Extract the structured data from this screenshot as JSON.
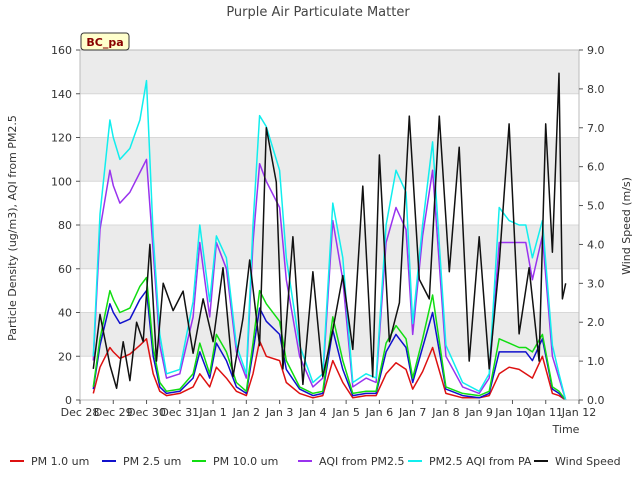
{
  "chart_data": {
    "type": "line",
    "title": "Purple Air Particulate Matter",
    "station_label": "BC_pa",
    "xlabel": "Time",
    "ylabel_left": "Particle Density (ug/m3), AQI from PM2.5",
    "ylabel_right": "Wind Speed (m/s)",
    "x_range_days": [
      0,
      15
    ],
    "x_ticks": [
      {
        "day": 0,
        "label": "Dec 28"
      },
      {
        "day": 1,
        "label": "Dec 29"
      },
      {
        "day": 2,
        "label": "Dec 30"
      },
      {
        "day": 3,
        "label": "Dec 31"
      },
      {
        "day": 4,
        "label": "Jan 1"
      },
      {
        "day": 5,
        "label": "Jan 2"
      },
      {
        "day": 6,
        "label": "Jan 3"
      },
      {
        "day": 7,
        "label": "Jan 4"
      },
      {
        "day": 8,
        "label": "Jan 5"
      },
      {
        "day": 9,
        "label": "Jan 6"
      },
      {
        "day": 10,
        "label": "Jan 7"
      },
      {
        "day": 11,
        "label": "Jan 8"
      },
      {
        "day": 12,
        "label": "Jan 9"
      },
      {
        "day": 13,
        "label": "Jan 10"
      },
      {
        "day": 14,
        "label": "Jan 11"
      },
      {
        "day": 15,
        "label": "Jan 12"
      }
    ],
    "ylim_left": [
      0,
      160
    ],
    "yticks_left": [
      0,
      20,
      40,
      60,
      80,
      100,
      120,
      140,
      160
    ],
    "ylim_right": [
      0,
      9
    ],
    "yticks_right": [
      "0.0",
      "1.0",
      "2.0",
      "3.0",
      "4.0",
      "5.0",
      "6.0",
      "7.0",
      "8.0",
      "9.0"
    ],
    "band_color": "#ebebeb",
    "grid_color": "#d8d8d8",
    "series": [
      {
        "name": "PM 1.0 um",
        "color": "#dd1111",
        "axis": "left",
        "x": [
          0.4,
          0.6,
          0.9,
          1.0,
          1.2,
          1.5,
          1.8,
          2.0,
          2.2,
          2.4,
          2.6,
          3.0,
          3.4,
          3.6,
          3.9,
          4.1,
          4.4,
          4.7,
          5.0,
          5.2,
          5.4,
          5.6,
          6.0,
          6.2,
          6.6,
          7.0,
          7.3,
          7.6,
          7.9,
          8.2,
          8.6,
          8.9,
          9.2,
          9.5,
          9.8,
          10.0,
          10.3,
          10.6,
          11.0,
          11.5,
          12.0,
          12.3,
          12.6,
          12.9,
          13.2,
          13.4,
          13.6,
          13.9,
          14.2,
          14.4,
          14.6
        ],
        "y": [
          3,
          15,
          24,
          22,
          19,
          21,
          25,
          28,
          12,
          4,
          2,
          3,
          6,
          12,
          6,
          15,
          10,
          4,
          2,
          12,
          27,
          20,
          18,
          8,
          3,
          1,
          2,
          18,
          8,
          1,
          2,
          2,
          12,
          17,
          14,
          5,
          13,
          24,
          3,
          1,
          1,
          2,
          12,
          15,
          14,
          12,
          10,
          20,
          3,
          2,
          0
        ]
      },
      {
        "name": "PM 2.5 um",
        "color": "#1111cc",
        "axis": "left",
        "x": [
          0.4,
          0.6,
          0.9,
          1.0,
          1.2,
          1.5,
          1.8,
          2.0,
          2.2,
          2.4,
          2.6,
          3.0,
          3.4,
          3.6,
          3.9,
          4.1,
          4.4,
          4.7,
          5.0,
          5.2,
          5.4,
          5.6,
          6.0,
          6.2,
          6.6,
          7.0,
          7.3,
          7.6,
          7.9,
          8.2,
          8.6,
          8.9,
          9.2,
          9.5,
          9.8,
          10.0,
          10.3,
          10.6,
          11.0,
          11.5,
          12.0,
          12.3,
          12.6,
          12.9,
          13.2,
          13.4,
          13.6,
          13.9,
          14.2,
          14.4,
          14.6
        ],
        "y": [
          5,
          25,
          44,
          40,
          35,
          37,
          46,
          50,
          20,
          6,
          3,
          4,
          10,
          22,
          10,
          26,
          18,
          6,
          3,
          22,
          42,
          36,
          30,
          14,
          5,
          2,
          3,
          32,
          14,
          2,
          3,
          3,
          22,
          30,
          24,
          8,
          24,
          40,
          5,
          2,
          1,
          3,
          22,
          22,
          22,
          22,
          18,
          28,
          5,
          3,
          0
        ]
      },
      {
        "name": "PM 10.0 um",
        "color": "#11dd11",
        "axis": "left",
        "x": [
          0.4,
          0.6,
          0.9,
          1.0,
          1.2,
          1.5,
          1.8,
          2.0,
          2.2,
          2.4,
          2.6,
          3.0,
          3.4,
          3.6,
          3.9,
          4.1,
          4.4,
          4.7,
          5.0,
          5.2,
          5.4,
          5.6,
          6.0,
          6.2,
          6.6,
          7.0,
          7.3,
          7.6,
          7.9,
          8.2,
          8.6,
          8.9,
          9.2,
          9.5,
          9.8,
          10.0,
          10.3,
          10.6,
          11.0,
          11.5,
          12.0,
          12.3,
          12.6,
          12.9,
          13.2,
          13.4,
          13.6,
          13.9,
          14.2,
          14.4,
          14.6
        ],
        "y": [
          6,
          28,
          50,
          46,
          40,
          42,
          52,
          56,
          24,
          8,
          4,
          5,
          12,
          26,
          12,
          30,
          22,
          8,
          4,
          26,
          50,
          44,
          36,
          18,
          6,
          3,
          4,
          38,
          18,
          3,
          4,
          4,
          26,
          34,
          28,
          10,
          28,
          48,
          6,
          3,
          2,
          4,
          28,
          26,
          24,
          24,
          22,
          30,
          6,
          4,
          0
        ]
      },
      {
        "name": "AQI from PM2.5",
        "color": "#9933ee",
        "axis": "left",
        "x": [
          0.4,
          0.6,
          0.9,
          1.0,
          1.2,
          1.5,
          1.8,
          2.0,
          2.2,
          2.4,
          2.6,
          3.0,
          3.4,
          3.6,
          3.9,
          4.1,
          4.4,
          4.7,
          5.0,
          5.2,
          5.4,
          5.6,
          6.0,
          6.2,
          6.6,
          7.0,
          7.3,
          7.6,
          7.9,
          8.2,
          8.6,
          8.9,
          9.2,
          9.5,
          9.8,
          10.0,
          10.3,
          10.6,
          11.0,
          11.5,
          12.0,
          12.3,
          12.6,
          12.9,
          13.2,
          13.4,
          13.6,
          13.9,
          14.2,
          14.4,
          14.6
        ],
        "y": [
          18,
          78,
          105,
          98,
          90,
          95,
          104,
          110,
          68,
          25,
          10,
          12,
          38,
          72,
          38,
          72,
          60,
          22,
          10,
          72,
          108,
          100,
          88,
          55,
          20,
          6,
          10,
          82,
          55,
          6,
          10,
          8,
          72,
          88,
          78,
          30,
          75,
          105,
          20,
          6,
          3,
          10,
          72,
          72,
          72,
          72,
          55,
          75,
          20,
          10,
          0
        ]
      },
      {
        "name": "PM2.5 AQI from PA",
        "color": "#11eeee",
        "axis": "left",
        "x": [
          0.4,
          0.6,
          0.9,
          1.0,
          1.2,
          1.5,
          1.8,
          2.0,
          2.2,
          2.4,
          2.6,
          3.0,
          3.4,
          3.6,
          3.9,
          4.1,
          4.4,
          4.7,
          5.0,
          5.2,
          5.4,
          5.6,
          6.0,
          6.2,
          6.6,
          7.0,
          7.3,
          7.6,
          7.9,
          8.2,
          8.6,
          8.9,
          9.2,
          9.5,
          9.8,
          10.0,
          10.3,
          10.6,
          11.0,
          11.5,
          12.0,
          12.3,
          12.6,
          12.9,
          13.2,
          13.4,
          13.6,
          13.9,
          14.2,
          14.4,
          14.6
        ],
        "y": [
          20,
          85,
          128,
          120,
          110,
          115,
          128,
          146,
          75,
          30,
          12,
          14,
          45,
          80,
          45,
          75,
          65,
          25,
          12,
          80,
          130,
          125,
          105,
          65,
          25,
          8,
          12,
          90,
          65,
          8,
          12,
          10,
          80,
          105,
          95,
          35,
          80,
          118,
          25,
          8,
          4,
          12,
          88,
          82,
          80,
          80,
          65,
          82,
          25,
          12,
          0
        ]
      },
      {
        "name": "Wind Speed",
        "color": "#111111",
        "axis": "right",
        "x": [
          0.4,
          0.6,
          0.9,
          1.1,
          1.3,
          1.5,
          1.7,
          1.9,
          2.1,
          2.3,
          2.5,
          2.8,
          3.1,
          3.4,
          3.7,
          4.0,
          4.3,
          4.6,
          4.9,
          5.1,
          5.4,
          5.6,
          5.9,
          6.1,
          6.4,
          6.7,
          7.0,
          7.3,
          7.6,
          7.9,
          8.2,
          8.5,
          8.8,
          9.0,
          9.3,
          9.6,
          9.9,
          10.2,
          10.5,
          10.8,
          11.1,
          11.4,
          11.7,
          12.0,
          12.3,
          12.6,
          12.9,
          13.2,
          13.5,
          13.8,
          14.0,
          14.2,
          14.4,
          14.5,
          14.6
        ],
        "y": [
          0.8,
          2.2,
          0.9,
          0.3,
          1.5,
          0.5,
          2.0,
          1.5,
          4.0,
          1.0,
          3.0,
          2.3,
          2.8,
          1.2,
          2.6,
          1.5,
          3.4,
          0.6,
          2.1,
          3.6,
          1.4,
          7.0,
          5.6,
          0.8,
          4.2,
          0.4,
          3.3,
          0.6,
          1.8,
          3.2,
          1.3,
          5.5,
          0.6,
          6.3,
          1.5,
          2.5,
          7.3,
          3.1,
          2.6,
          7.3,
          3.3,
          6.5,
          1.0,
          4.2,
          0.8,
          3.5,
          7.1,
          1.7,
          3.4,
          1.0,
          7.1,
          3.8,
          8.4,
          2.6,
          3.0
        ]
      }
    ]
  }
}
